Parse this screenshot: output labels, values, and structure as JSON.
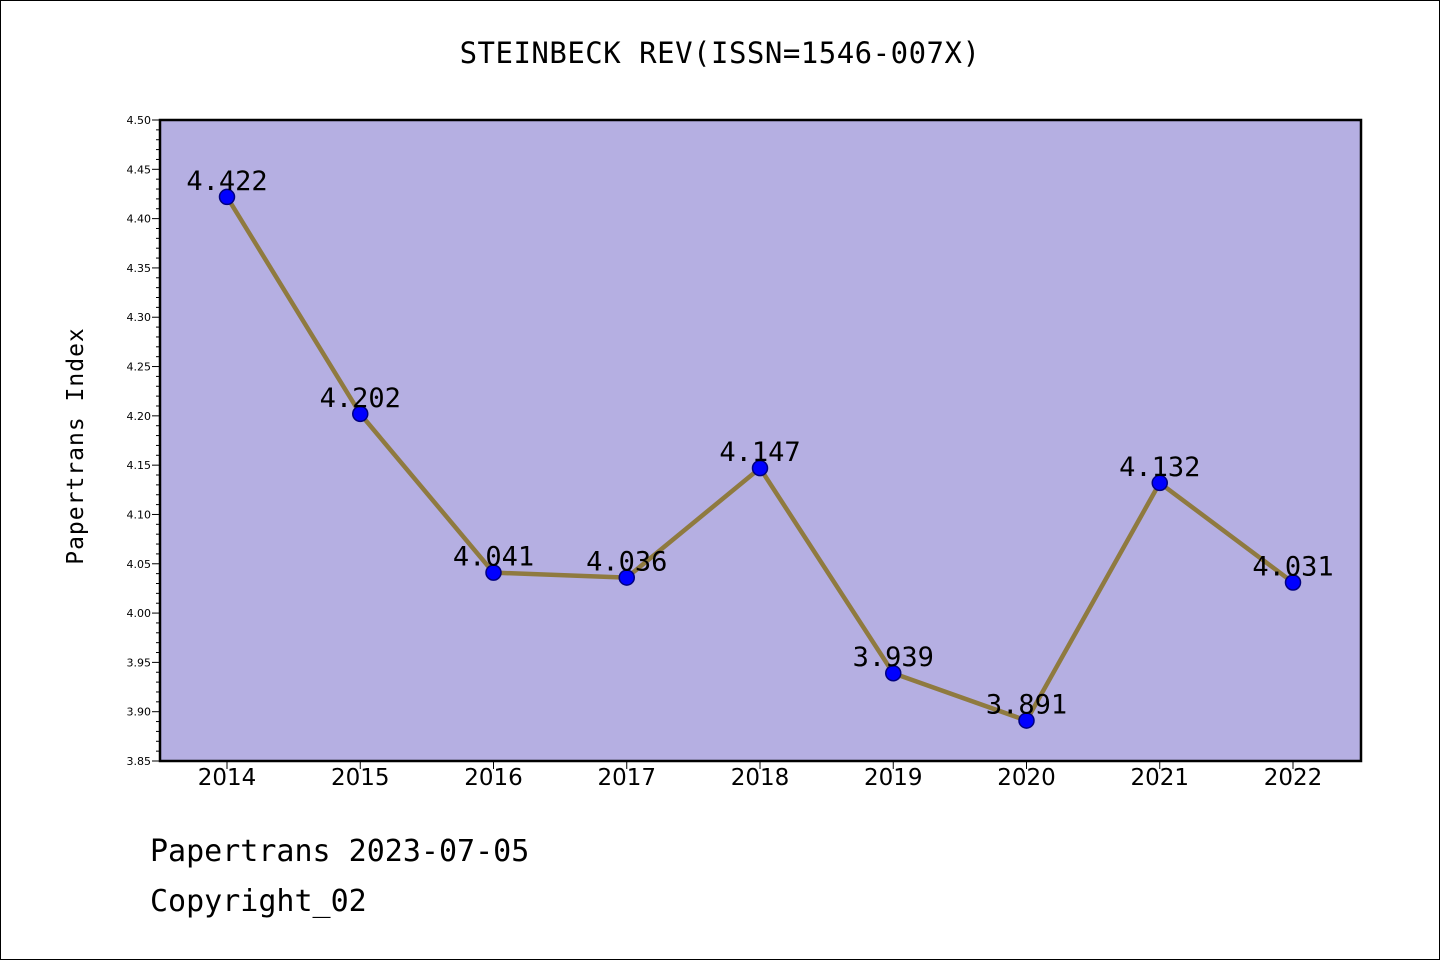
{
  "chart_data": {
    "type": "line",
    "title": "STEINBECK REV(ISSN=1546-007X)",
    "xlabel": "",
    "ylabel": "Papertrans Index",
    "categories": [
      "2014",
      "2015",
      "2016",
      "2017",
      "2018",
      "2019",
      "2020",
      "2021",
      "2022"
    ],
    "values": [
      4.422,
      4.202,
      4.041,
      4.036,
      4.147,
      3.939,
      3.891,
      4.132,
      4.031
    ],
    "data_labels": [
      "4.422",
      "4.202",
      "4.041",
      "4.036",
      "4.147",
      "3.939",
      "3.891",
      "4.132",
      "4.031"
    ],
    "ylim": [
      3.85,
      4.5
    ],
    "yticks": [
      "3.85",
      "3.90",
      "3.95",
      "4.00",
      "4.05",
      "4.10",
      "4.15",
      "4.20",
      "4.25",
      "4.30",
      "4.35",
      "4.40",
      "4.45",
      "4.50"
    ],
    "grid": false,
    "legend": "none",
    "colors": {
      "plot_background": "#b5afe2",
      "line": "#8f7a3f",
      "marker_fill": "#0000ff",
      "marker_edge": "#000080"
    }
  },
  "footer": {
    "line1": "Papertrans 2023-07-05",
    "line2": "Copyright_02"
  }
}
